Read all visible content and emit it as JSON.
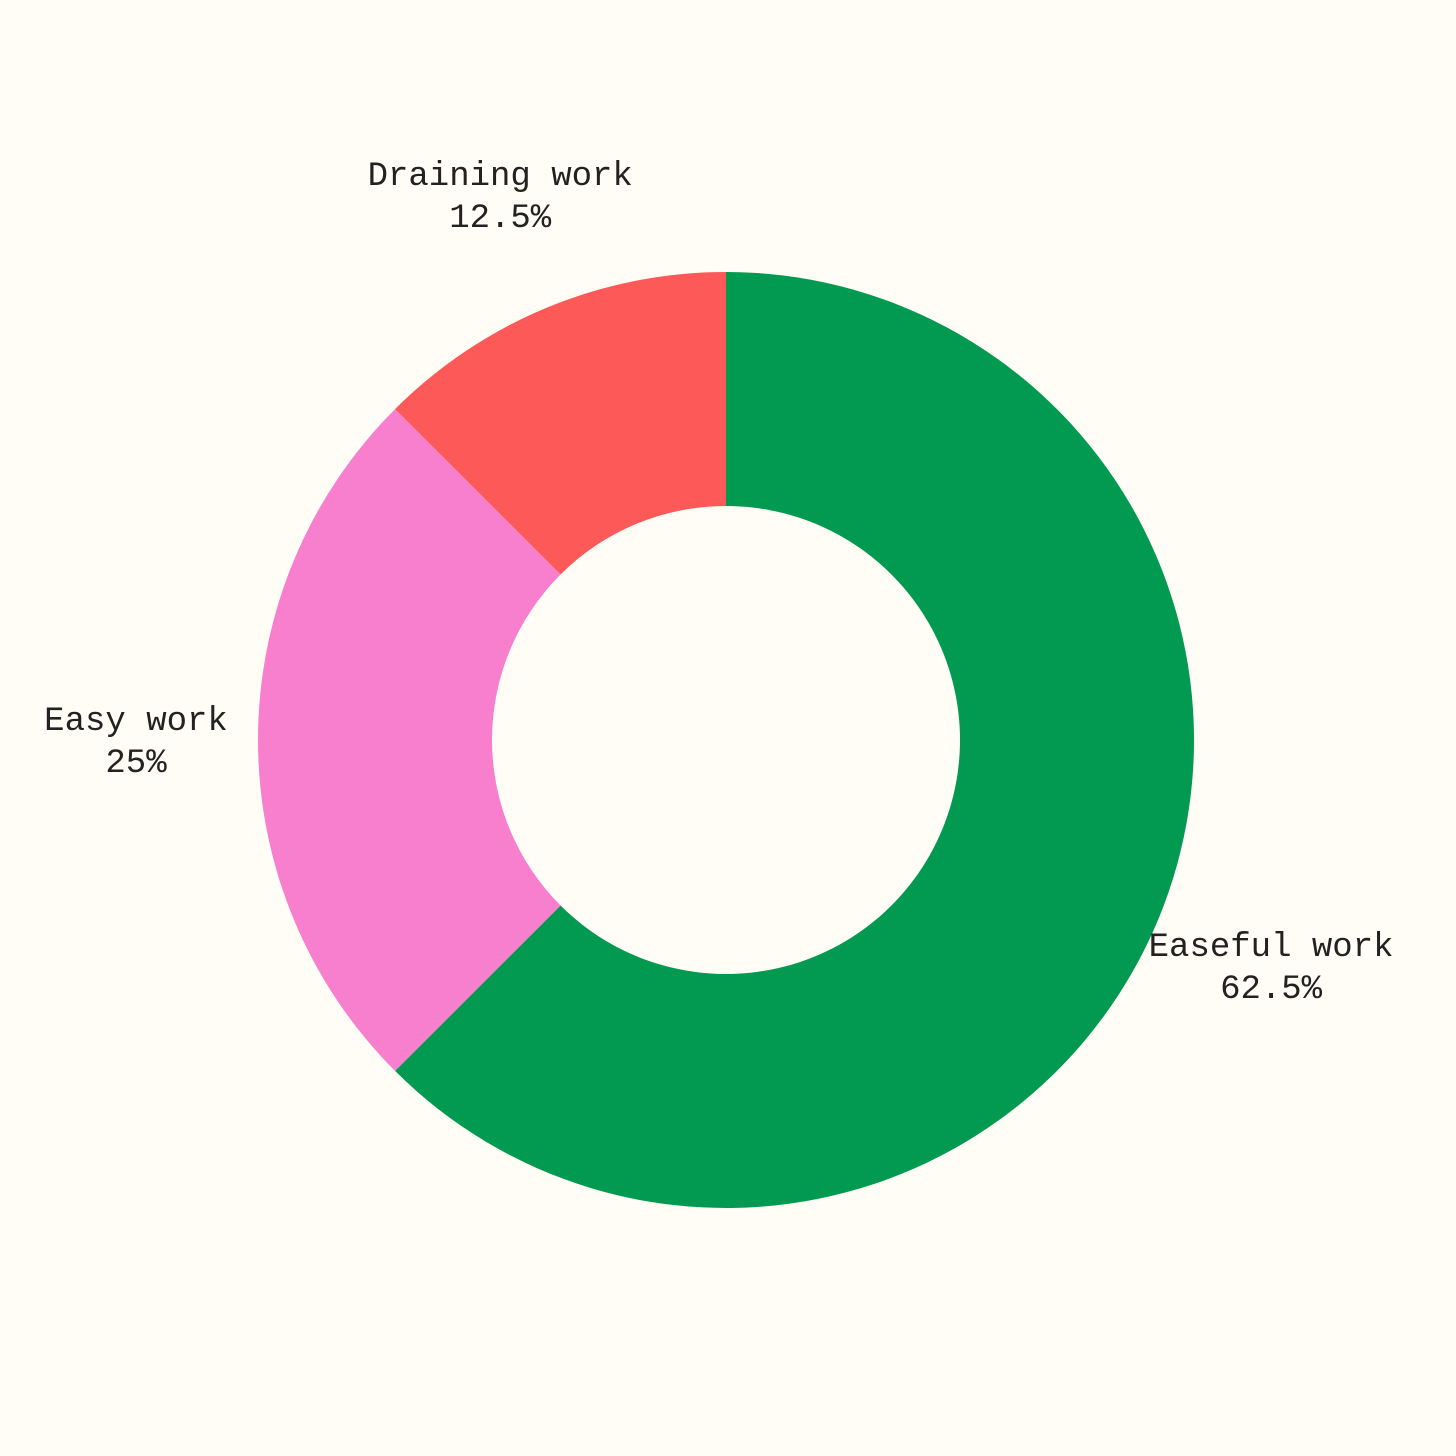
{
  "chart_data": {
    "type": "donut",
    "categories": [
      "Easeful work",
      "Easy work",
      "Draining work"
    ],
    "values": [
      62.5,
      25,
      12.5
    ],
    "value_labels": [
      "62.5%",
      "25%",
      "12.5%"
    ],
    "colors": [
      "#019a50",
      "#f77fcd",
      "#fe5959"
    ]
  }
}
